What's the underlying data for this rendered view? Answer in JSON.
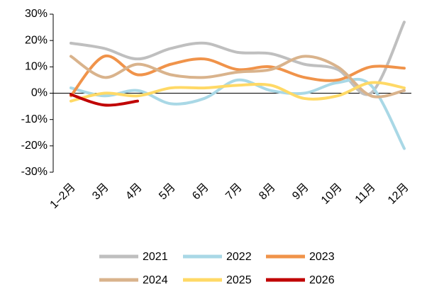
{
  "chart_data": {
    "type": "line",
    "categories": [
      "1–2月",
      "3月",
      "4月",
      "5月",
      "6月",
      "7月",
      "8月",
      "9月",
      "10月",
      "11月",
      "12月"
    ],
    "series": [
      {
        "name": "2021",
        "color": "#bfbfbf",
        "values": [
          19,
          17,
          13,
          17,
          19,
          15.5,
          15,
          11,
          9,
          0,
          27
        ]
      },
      {
        "name": "2022",
        "color": "#a9d8e6",
        "values": [
          2,
          -1,
          1,
          -4,
          -2,
          5,
          1,
          0,
          4,
          3,
          -21
        ]
      },
      {
        "name": "2023",
        "color": "#f0934a",
        "values": [
          -1,
          14,
          7,
          11,
          13,
          9,
          10,
          6,
          5,
          10,
          9.5
        ]
      },
      {
        "name": "2024",
        "color": "#d9b38c",
        "values": [
          14,
          6,
          11,
          7,
          6,
          8,
          9,
          14,
          10,
          -1,
          1
        ]
      },
      {
        "name": "2025",
        "color": "#ffd966",
        "values": [
          -3,
          0,
          -1,
          2,
          2,
          3,
          3,
          -2,
          -1,
          4,
          2
        ]
      },
      {
        "name": "2026",
        "color": "#c00000",
        "values": [
          -0.5,
          -4.5,
          -3,
          null,
          null,
          null,
          null,
          null,
          null,
          null,
          null
        ]
      }
    ],
    "ylim": [
      -30,
      30
    ],
    "yticks": [
      {
        "value": 30,
        "label": "30%"
      },
      {
        "value": 20,
        "label": "20%"
      },
      {
        "value": 10,
        "label": "10%"
      },
      {
        "value": 0,
        "label": "0%"
      },
      {
        "value": -10,
        "label": "-10%"
      },
      {
        "value": -20,
        "label": "-20%"
      },
      {
        "value": -30,
        "label": "-30%"
      }
    ],
    "legend": "bottom"
  }
}
